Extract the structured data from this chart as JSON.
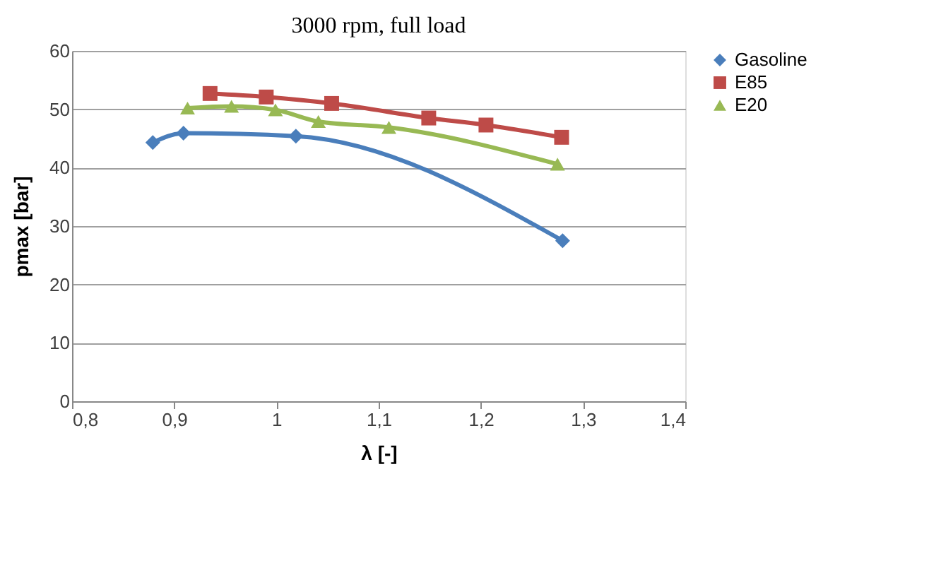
{
  "chart_data": {
    "type": "line",
    "title": "3000 rpm, full load",
    "xlabel": "λ [-]",
    "ylabel": "pmax [bar]",
    "xlim": [
      0.8,
      1.4
    ],
    "xticks": [
      {
        "value": 0.8,
        "label": "0,8"
      },
      {
        "value": 0.9,
        "label": "0,9"
      },
      1,
      {
        "value": 1.1,
        "label": "1,1"
      },
      {
        "value": 1.2,
        "label": "1,2"
      },
      {
        "value": 1.3,
        "label": "1,3"
      },
      {
        "value": 1.4,
        "label": "1,4"
      }
    ],
    "ylim": [
      0,
      60
    ],
    "yticks": [
      0,
      10,
      20,
      30,
      40,
      50,
      60
    ],
    "grid": "y",
    "legend": "right",
    "series": [
      {
        "name": "Gasoline",
        "color": "#4a7ebb",
        "marker": "diamond",
        "x": [
          0.879,
          0.909,
          1.019,
          1.28
        ],
        "values": [
          44.3,
          45.9,
          45.4,
          27.5
        ]
      },
      {
        "name": "E85",
        "color": "#be4b48",
        "marker": "square",
        "x": [
          0.935,
          0.99,
          1.054,
          1.149,
          1.205,
          1.279
        ],
        "values": [
          52.7,
          52.1,
          51.0,
          48.5,
          47.3,
          45.2
        ]
      },
      {
        "name": "E20",
        "color": "#98b954",
        "marker": "triangle",
        "x": [
          0.913,
          0.956,
          0.999,
          1.041,
          1.11,
          1.275
        ],
        "values": [
          50.2,
          50.5,
          49.9,
          47.9,
          46.9,
          40.6
        ]
      }
    ]
  }
}
